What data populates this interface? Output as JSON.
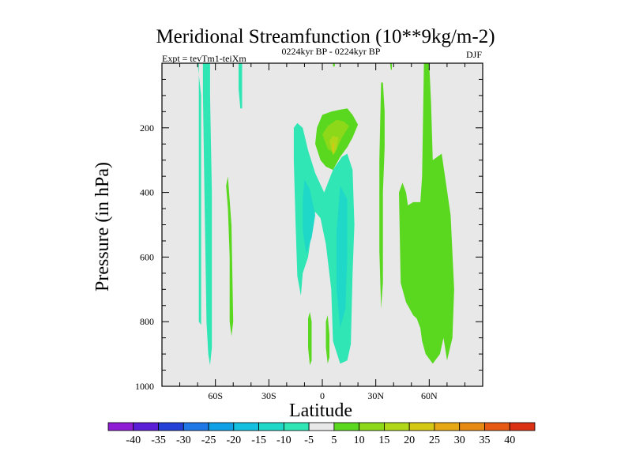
{
  "chart_data": {
    "type": "filled-contour",
    "title": "Meridional Streamfunction (10**9kg/m-2)",
    "left_label": "Expt = tevTm1-teiXm",
    "center_label": "0224kyr BP - 0224kyr BP",
    "right_label": "DJF",
    "xlabel": "Latitude",
    "ylabel": "Pressure (in hPa)",
    "xlim": [
      -90,
      90
    ],
    "ylim": [
      1000,
      0
    ],
    "x_ticks": [
      -60,
      -30,
      0,
      30,
      60
    ],
    "x_tick_labels": [
      "60S",
      "30S",
      "0",
      "30N",
      "60N"
    ],
    "y_ticks": [
      200,
      400,
      600,
      800,
      1000
    ],
    "y_tick_labels": [
      "200",
      "400",
      "600",
      "800",
      "1000"
    ],
    "background_color": "#e8e8e8",
    "colorbar": {
      "levels": [
        -40,
        -35,
        -30,
        -25,
        -20,
        -15,
        -10,
        -5,
        5,
        10,
        15,
        20,
        25,
        30,
        35,
        40
      ],
      "labels": [
        "-40",
        "-35",
        "-30",
        "-25",
        "-20",
        "-15",
        "-10",
        "-5",
        "5",
        "10",
        "15",
        "20",
        "25",
        "30",
        "35",
        "40"
      ],
      "colors": [
        "#8f1dd6",
        "#5a1fd6",
        "#2540d6",
        "#1f78e6",
        "#0fa0e8",
        "#14c0e0",
        "#20d8c8",
        "#30e6b4",
        "#e8e8e8",
        "#5ad820",
        "#8cd819",
        "#b0d819",
        "#d4c814",
        "#e6a814",
        "#e68a14",
        "#e65a14",
        "#dc3214"
      ]
    },
    "regions": [
      {
        "name": "sh-midlat-cell",
        "value": -7,
        "color": "#30e6b4",
        "points": [
          [
            -69,
            0
          ],
          [
            -67,
            0
          ],
          [
            -67,
            100
          ],
          [
            -66,
            450
          ],
          [
            -65,
            800
          ],
          [
            -64,
            900
          ],
          [
            -63,
            935
          ],
          [
            -62,
            880
          ],
          [
            -62,
            400
          ],
          [
            -63,
            100
          ],
          [
            -63,
            0
          ]
        ]
      },
      {
        "name": "sh-thin-strip",
        "value": -6,
        "color": "#30e6b4",
        "points": [
          [
            -70,
            0
          ],
          [
            -69.3,
            0
          ],
          [
            -69.3,
            800
          ],
          [
            -68,
            810
          ],
          [
            -68,
            100
          ]
        ]
      },
      {
        "name": "sh-subtropic-positive",
        "value": 7,
        "color": "#5ad820",
        "points": [
          [
            -54,
            380
          ],
          [
            -53,
            450
          ],
          [
            -52,
            600
          ],
          [
            -52,
            800
          ],
          [
            -51,
            845
          ],
          [
            -50,
            800
          ],
          [
            -51,
            500
          ],
          [
            -53,
            350
          ]
        ]
      },
      {
        "name": "sh-upper-strip",
        "value": -6,
        "color": "#30e6b4",
        "points": [
          [
            -47,
            0
          ],
          [
            -45,
            0
          ],
          [
            -45,
            140
          ],
          [
            -46,
            140
          ],
          [
            -47,
            80
          ]
        ]
      },
      {
        "name": "tropical-negative-cell",
        "value": -10,
        "color": "#30e6b4",
        "points": [
          [
            -16,
            200
          ],
          [
            -14,
            185
          ],
          [
            -11,
            200
          ],
          [
            -8,
            270
          ],
          [
            -4,
            340
          ],
          [
            1,
            400
          ],
          [
            6,
            330
          ],
          [
            11,
            290
          ],
          [
            14,
            280
          ],
          [
            17,
            330
          ],
          [
            18,
            500
          ],
          [
            17,
            650
          ],
          [
            16,
            870
          ],
          [
            14,
            920
          ],
          [
            10,
            930
          ],
          [
            6,
            860
          ],
          [
            5,
            700
          ],
          [
            2,
            560
          ],
          [
            -1,
            480
          ],
          [
            -4,
            460
          ],
          [
            -6,
            520
          ],
          [
            -8,
            600
          ],
          [
            -11,
            650
          ],
          [
            -12,
            720
          ],
          [
            -14,
            660
          ],
          [
            -15,
            500
          ],
          [
            -16,
            300
          ]
        ]
      },
      {
        "name": "tropical-core-left",
        "value": -14,
        "color": "#20d8c8",
        "points": [
          [
            -10,
            360
          ],
          [
            -7,
            390
          ],
          [
            -4,
            470
          ],
          [
            -6,
            540
          ],
          [
            -9,
            590
          ],
          [
            -11,
            520
          ],
          [
            -11,
            420
          ]
        ]
      },
      {
        "name": "tropical-core-right",
        "value": -14,
        "color": "#20d8c8",
        "points": [
          [
            10,
            380
          ],
          [
            14,
            420
          ],
          [
            14,
            600
          ],
          [
            13,
            760
          ],
          [
            10,
            820
          ],
          [
            8,
            700
          ],
          [
            8,
            520
          ]
        ]
      },
      {
        "name": "upper-tropical-positive",
        "value": 7,
        "color": "#5ad820",
        "points": [
          [
            -4,
            250
          ],
          [
            -3,
            200
          ],
          [
            0,
            160
          ],
          [
            5,
            150
          ],
          [
            9,
            145
          ],
          [
            14,
            140
          ],
          [
            17,
            160
          ],
          [
            20,
            190
          ],
          [
            17,
            230
          ],
          [
            14,
            260
          ],
          [
            10,
            290
          ],
          [
            6,
            330
          ],
          [
            2,
            320
          ],
          [
            -1,
            300
          ]
        ]
      },
      {
        "name": "upper-tropical-core",
        "value": 12,
        "color": "#8cd819",
        "points": [
          [
            0,
            220
          ],
          [
            3,
            195
          ],
          [
            8,
            175
          ],
          [
            12,
            180
          ],
          [
            15,
            195
          ],
          [
            11,
            230
          ],
          [
            7,
            280
          ],
          [
            3,
            265
          ]
        ]
      },
      {
        "name": "upper-tropical-center",
        "value": 17,
        "color": "#b0d819",
        "points": [
          [
            4,
            240
          ],
          [
            6,
            225
          ],
          [
            9,
            230
          ],
          [
            8,
            265
          ],
          [
            6,
            285
          ]
        ]
      },
      {
        "name": "upper-tropical-peak",
        "value": 22,
        "color": "#d4c814",
        "points": [
          [
            5.6,
            250
          ],
          [
            6.8,
            245
          ],
          [
            6.5,
            275
          ],
          [
            5.8,
            275
          ]
        ]
      },
      {
        "name": "sh-lower-positive",
        "value": 6,
        "color": "#5ad820",
        "points": [
          [
            -8,
            790
          ],
          [
            -7,
            770
          ],
          [
            -6,
            800
          ],
          [
            -6,
            920
          ],
          [
            -7,
            935
          ],
          [
            -8,
            880
          ]
        ]
      },
      {
        "name": "eq-lower-positive",
        "value": 6,
        "color": "#5ad820",
        "points": [
          [
            2,
            800
          ],
          [
            3,
            780
          ],
          [
            4,
            840
          ],
          [
            4,
            910
          ],
          [
            3,
            930
          ],
          [
            2,
            880
          ]
        ]
      },
      {
        "name": "nh-subtropic-positive",
        "value": 8,
        "color": "#5ad820",
        "points": [
          [
            33,
            60
          ],
          [
            34,
            60
          ],
          [
            35,
            150
          ],
          [
            35,
            260
          ],
          [
            34,
            400
          ],
          [
            34,
            680
          ],
          [
            33,
            760
          ],
          [
            32,
            580
          ],
          [
            32,
            300
          ]
        ]
      },
      {
        "name": "nh-mid-positive",
        "value": 9,
        "color": "#5ad820",
        "points": [
          [
            43,
            400
          ],
          [
            45,
            370
          ],
          [
            47,
            400
          ],
          [
            48,
            440
          ],
          [
            51,
            430
          ],
          [
            55,
            430
          ],
          [
            56,
            350
          ],
          [
            57,
            0
          ],
          [
            58,
            0
          ],
          [
            60,
            0
          ],
          [
            61,
            120
          ],
          [
            62,
            300
          ],
          [
            67,
            280
          ],
          [
            72,
            470
          ],
          [
            74,
            700
          ],
          [
            73,
            850
          ],
          [
            70,
            920
          ],
          [
            68,
            850
          ],
          [
            66,
            900
          ],
          [
            62,
            930
          ],
          [
            58,
            900
          ],
          [
            56,
            860
          ],
          [
            55,
            820
          ],
          [
            53,
            790
          ],
          [
            51,
            780
          ],
          [
            49,
            760
          ],
          [
            47,
            740
          ],
          [
            44,
            680
          ]
        ]
      },
      {
        "name": "nh-upper-strip",
        "value": 6,
        "color": "#5ad820",
        "points": [
          [
            38,
            0
          ],
          [
            39,
            0
          ],
          [
            39,
            20
          ],
          [
            38.5,
            20
          ]
        ]
      },
      {
        "name": "trace-1",
        "value": 6,
        "color": "#5ad820",
        "points": [
          [
            6,
            0
          ],
          [
            7,
            0
          ],
          [
            7,
            10
          ],
          [
            6,
            10
          ]
        ]
      }
    ]
  }
}
